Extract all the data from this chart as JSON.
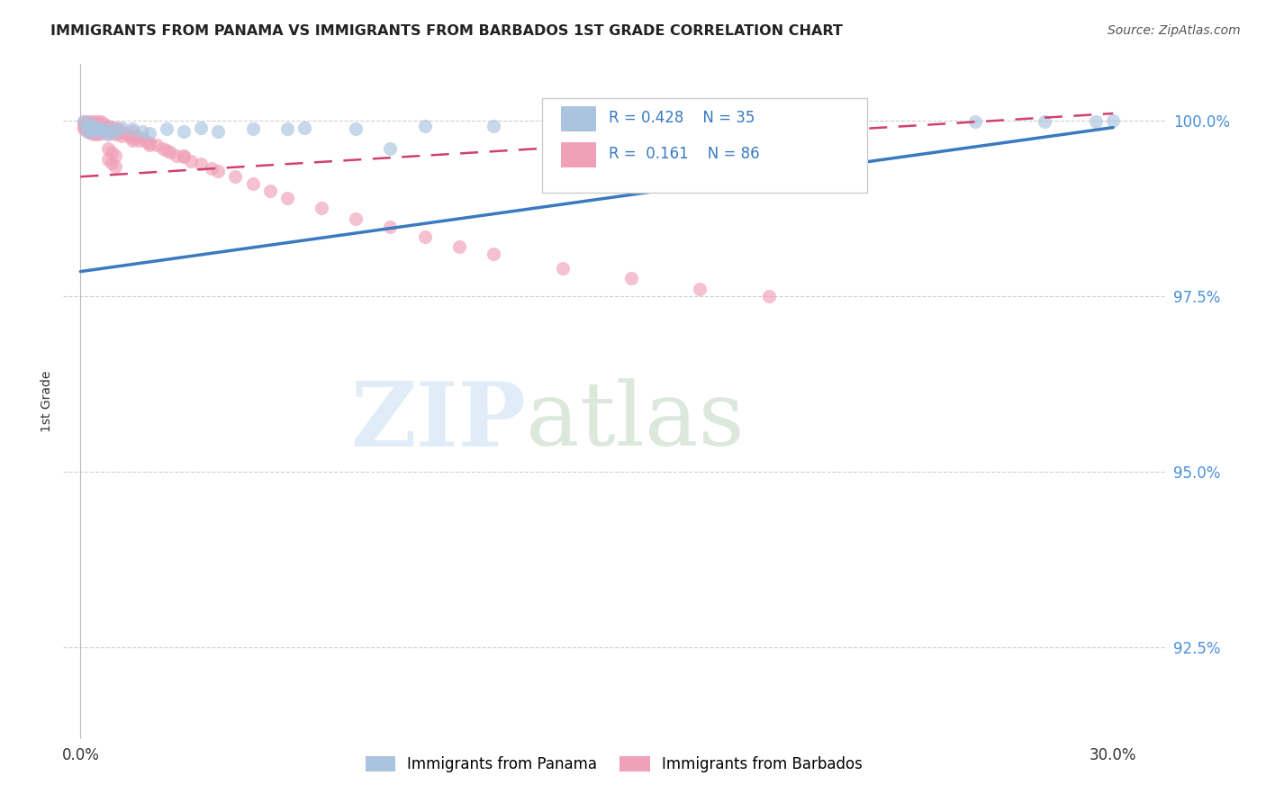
{
  "title": "IMMIGRANTS FROM PANAMA VS IMMIGRANTS FROM BARBADOS 1ST GRADE CORRELATION CHART",
  "source": "Source: ZipAtlas.com",
  "ylabel": "1st Grade",
  "xlim": [
    -0.005,
    0.315
  ],
  "ylim": [
    0.912,
    1.008
  ],
  "yticks": [
    0.925,
    0.95,
    0.975,
    1.0
  ],
  "ytick_labels": [
    "92.5%",
    "95.0%",
    "97.5%",
    "100.0%"
  ],
  "xticks": [
    0.0,
    0.3
  ],
  "xtick_labels": [
    "0.0%",
    "30.0%"
  ],
  "legend_label1": "Immigrants from Panama",
  "legend_label2": "Immigrants from Barbados",
  "R1": 0.428,
  "N1": 35,
  "R2": 0.161,
  "N2": 86,
  "color1": "#aac4e0",
  "color2": "#f0a0b8",
  "trendline1_color": "#3a7abf",
  "trendline2_color": "#d04070",
  "background_color": "#ffffff",
  "panama_x": [
    0.001,
    0.002,
    0.002,
    0.003,
    0.003,
    0.004,
    0.004,
    0.005,
    0.006,
    0.007,
    0.008,
    0.009,
    0.01,
    0.012,
    0.015,
    0.018,
    0.02,
    0.025,
    0.03,
    0.035,
    0.04,
    0.05,
    0.065,
    0.08,
    0.1,
    0.12,
    0.15,
    0.18,
    0.22,
    0.26,
    0.28,
    0.295,
    0.3,
    0.06,
    0.09
  ],
  "panama_y": [
    0.9998,
    0.9992,
    0.9985,
    0.9988,
    0.9995,
    0.999,
    0.9985,
    0.9988,
    0.999,
    0.9985,
    0.998,
    0.9988,
    0.9985,
    0.999,
    0.9988,
    0.9985,
    0.9982,
    0.9988,
    0.9985,
    0.999,
    0.9985,
    0.9988,
    0.999,
    0.9988,
    0.9992,
    0.9992,
    0.9995,
    0.9995,
    0.9998,
    0.9998,
    0.9998,
    0.9998,
    1.0,
    0.9988,
    0.996
  ],
  "barbados_x": [
    0.001,
    0.001,
    0.001,
    0.001,
    0.002,
    0.002,
    0.002,
    0.002,
    0.002,
    0.003,
    0.003,
    0.003,
    0.003,
    0.003,
    0.003,
    0.004,
    0.004,
    0.004,
    0.004,
    0.004,
    0.005,
    0.005,
    0.005,
    0.005,
    0.005,
    0.006,
    0.006,
    0.006,
    0.006,
    0.007,
    0.007,
    0.007,
    0.008,
    0.008,
    0.008,
    0.009,
    0.009,
    0.01,
    0.01,
    0.011,
    0.011,
    0.012,
    0.012,
    0.013,
    0.014,
    0.015,
    0.015,
    0.016,
    0.017,
    0.018,
    0.019,
    0.02,
    0.022,
    0.024,
    0.026,
    0.028,
    0.03,
    0.032,
    0.035,
    0.038,
    0.04,
    0.045,
    0.05,
    0.055,
    0.06,
    0.07,
    0.08,
    0.09,
    0.1,
    0.11,
    0.12,
    0.14,
    0.16,
    0.18,
    0.2,
    0.01,
    0.015,
    0.02,
    0.025,
    0.03,
    0.008,
    0.008,
    0.009,
    0.009,
    0.01,
    0.01
  ],
  "barbados_y": [
    0.9998,
    0.9995,
    0.9992,
    0.9988,
    0.9998,
    0.9995,
    0.9992,
    0.9988,
    0.9985,
    0.9998,
    0.9995,
    0.9992,
    0.9988,
    0.9985,
    0.9982,
    0.9998,
    0.9995,
    0.999,
    0.9985,
    0.998,
    0.9998,
    0.9995,
    0.999,
    0.9985,
    0.998,
    0.9998,
    0.9993,
    0.9988,
    0.9982,
    0.9995,
    0.999,
    0.9985,
    0.9992,
    0.9988,
    0.9982,
    0.999,
    0.9985,
    0.999,
    0.9985,
    0.9988,
    0.9982,
    0.9985,
    0.9978,
    0.9982,
    0.9978,
    0.9985,
    0.9975,
    0.9978,
    0.9972,
    0.9975,
    0.997,
    0.9968,
    0.9965,
    0.996,
    0.9955,
    0.995,
    0.9948,
    0.9942,
    0.9938,
    0.9932,
    0.9928,
    0.992,
    0.991,
    0.99,
    0.989,
    0.9875,
    0.986,
    0.9848,
    0.9835,
    0.982,
    0.981,
    0.979,
    0.9775,
    0.976,
    0.975,
    0.998,
    0.9972,
    0.9965,
    0.9958,
    0.995,
    0.996,
    0.9945,
    0.9955,
    0.994,
    0.995,
    0.9935
  ],
  "panama_trend_x": [
    0.0,
    0.3
  ],
  "panama_trend_y": [
    0.9785,
    0.999
  ],
  "barbados_trend_x": [
    0.0,
    0.3
  ],
  "barbados_trend_y": [
    0.992,
    1.001
  ]
}
